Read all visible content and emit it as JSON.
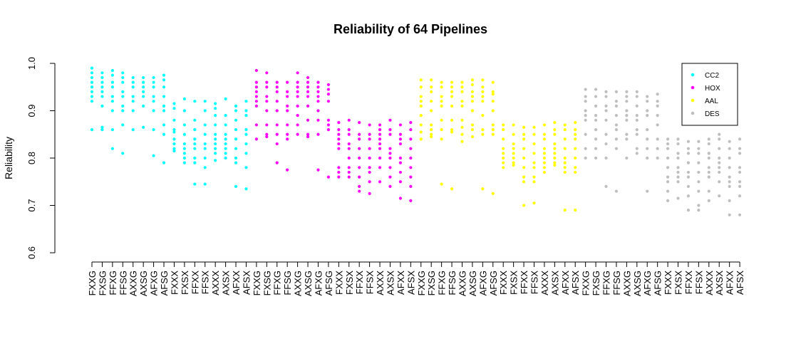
{
  "chart_data": {
    "type": "scatter",
    "title": "Reliability of 64 Pipelines",
    "ylabel": "Reliability",
    "xlabel": "",
    "ylim": [
      0.6,
      1.0
    ],
    "yticks": [
      "0.6",
      "0.7",
      "0.8",
      "0.9",
      "1.0"
    ],
    "grid": false,
    "legend_position": "top-right",
    "categories": [
      "FXXG",
      "FXSG",
      "FFXG",
      "FFSG",
      "AXXG",
      "AXSG",
      "AFXG",
      "AFSG",
      "FXXX",
      "FXSX",
      "FFXX",
      "FFSX",
      "AXXX",
      "AXSX",
      "AFXX",
      "AFSX",
      "FXXG",
      "FXSG",
      "FFXG",
      "FFSG",
      "AXXG",
      "AXSG",
      "AFXG",
      "AFSG",
      "FXXX",
      "FXSX",
      "FFXX",
      "FFSX",
      "AXXX",
      "AXSX",
      "AFXX",
      "AFSX",
      "FXXG",
      "FXSG",
      "FFXG",
      "FFSG",
      "AXXG",
      "AXSG",
      "AFXG",
      "AFSG",
      "FXXX",
      "FXSX",
      "FFXX",
      "FFSX",
      "AXXX",
      "AXSX",
      "AFXX",
      "AFSX",
      "FXXG",
      "FXSG",
      "FFXG",
      "FFSG",
      "AXXG",
      "AXSG",
      "AFXG",
      "AFSG",
      "FXXX",
      "FXSX",
      "FFXX",
      "FFSX",
      "AXXX",
      "AXSX",
      "AFXX",
      "AFSX"
    ],
    "series": [
      {
        "name": "CC2",
        "color": "#00FFFF",
        "points": [
          [
            0.99,
            0.98,
            0.97,
            0.96,
            0.95,
            0.94,
            0.93,
            0.92,
            0.86
          ],
          [
            0.98,
            0.97,
            0.96,
            0.95,
            0.94,
            0.93,
            0.91,
            0.86,
            0.865
          ],
          [
            0.985,
            0.975,
            0.96,
            0.95,
            0.93,
            0.92,
            0.9,
            0.86,
            0.82
          ],
          [
            0.98,
            0.97,
            0.96,
            0.94,
            0.93,
            0.91,
            0.9,
            0.87,
            0.81
          ],
          [
            0.97,
            0.96,
            0.95,
            0.93,
            0.92,
            0.9,
            0.86
          ],
          [
            0.97,
            0.96,
            0.95,
            0.94,
            0.93,
            0.91,
            0.865
          ],
          [
            0.97,
            0.96,
            0.95,
            0.93,
            0.92,
            0.9,
            0.86,
            0.805
          ],
          [
            0.975,
            0.965,
            0.95,
            0.93,
            0.91,
            0.9,
            0.87,
            0.85,
            0.79
          ],
          [
            0.915,
            0.905,
            0.88,
            0.86,
            0.855,
            0.84,
            0.83,
            0.82,
            0.815
          ],
          [
            0.925,
            0.9,
            0.87,
            0.85,
            0.83,
            0.82,
            0.81,
            0.8,
            0.79
          ],
          [
            0.92,
            0.88,
            0.86,
            0.84,
            0.83,
            0.82,
            0.8,
            0.79,
            0.745
          ],
          [
            0.92,
            0.9,
            0.87,
            0.85,
            0.83,
            0.82,
            0.8,
            0.78,
            0.745
          ],
          [
            0.915,
            0.905,
            0.89,
            0.87,
            0.85,
            0.84,
            0.83,
            0.82,
            0.81,
            0.795
          ],
          [
            0.925,
            0.89,
            0.87,
            0.85,
            0.84,
            0.83,
            0.82,
            0.81,
            0.8
          ],
          [
            0.91,
            0.9,
            0.88,
            0.86,
            0.84,
            0.82,
            0.8,
            0.79,
            0.74
          ],
          [
            0.92,
            0.9,
            0.89,
            0.86,
            0.85,
            0.83,
            0.81,
            0.78,
            0.735
          ]
        ]
      },
      {
        "name": "HOX",
        "color": "#FF00FF",
        "points": [
          [
            0.985,
            0.96,
            0.95,
            0.94,
            0.93,
            0.92,
            0.91,
            0.87,
            0.84
          ],
          [
            0.98,
            0.96,
            0.95,
            0.93,
            0.92,
            0.9,
            0.87,
            0.85,
            0.845
          ],
          [
            0.96,
            0.95,
            0.94,
            0.92,
            0.9,
            0.87,
            0.85,
            0.83,
            0.79
          ],
          [
            0.96,
            0.94,
            0.93,
            0.91,
            0.9,
            0.87,
            0.85,
            0.84,
            0.775
          ],
          [
            0.98,
            0.96,
            0.95,
            0.94,
            0.93,
            0.91,
            0.89,
            0.87,
            0.85
          ],
          [
            0.97,
            0.96,
            0.95,
            0.94,
            0.93,
            0.91,
            0.88,
            0.85,
            0.845
          ],
          [
            0.96,
            0.95,
            0.94,
            0.93,
            0.92,
            0.9,
            0.88,
            0.85,
            0.775
          ],
          [
            0.955,
            0.945,
            0.935,
            0.92,
            0.88,
            0.87,
            0.86,
            0.76
          ],
          [
            0.875,
            0.86,
            0.85,
            0.84,
            0.83,
            0.82,
            0.78,
            0.77,
            0.76
          ],
          [
            0.88,
            0.86,
            0.85,
            0.83,
            0.82,
            0.8,
            0.78,
            0.77,
            0.76
          ],
          [
            0.875,
            0.85,
            0.84,
            0.82,
            0.8,
            0.78,
            0.76,
            0.74,
            0.73
          ],
          [
            0.87,
            0.85,
            0.84,
            0.82,
            0.8,
            0.78,
            0.77,
            0.75,
            0.725
          ],
          [
            0.87,
            0.86,
            0.85,
            0.84,
            0.83,
            0.82,
            0.8,
            0.78,
            0.75
          ],
          [
            0.88,
            0.86,
            0.85,
            0.82,
            0.81,
            0.8,
            0.78,
            0.76,
            0.74
          ],
          [
            0.87,
            0.85,
            0.84,
            0.83,
            0.8,
            0.79,
            0.77,
            0.75,
            0.715
          ],
          [
            0.875,
            0.86,
            0.84,
            0.82,
            0.8,
            0.78,
            0.76,
            0.74,
            0.71
          ]
        ]
      },
      {
        "name": "AAL",
        "color": "#FFFF00",
        "points": [
          [
            0.965,
            0.95,
            0.93,
            0.92,
            0.91,
            0.89,
            0.87,
            0.855,
            0.84
          ],
          [
            0.965,
            0.95,
            0.94,
            0.92,
            0.9,
            0.87,
            0.86,
            0.85,
            0.845
          ],
          [
            0.96,
            0.95,
            0.93,
            0.92,
            0.91,
            0.88,
            0.86,
            0.84,
            0.745
          ],
          [
            0.96,
            0.95,
            0.94,
            0.93,
            0.91,
            0.88,
            0.86,
            0.855,
            0.735
          ],
          [
            0.96,
            0.95,
            0.94,
            0.92,
            0.91,
            0.88,
            0.865,
            0.85,
            0.835
          ],
          [
            0.965,
            0.955,
            0.94,
            0.93,
            0.92,
            0.9,
            0.87,
            0.86,
            0.845
          ],
          [
            0.965,
            0.95,
            0.94,
            0.93,
            0.92,
            0.89,
            0.86,
            0.85,
            0.735
          ],
          [
            0.96,
            0.94,
            0.935,
            0.92,
            0.9,
            0.87,
            0.86,
            0.85,
            0.725
          ],
          [
            0.87,
            0.86,
            0.84,
            0.82,
            0.81,
            0.8,
            0.79,
            0.78
          ],
          [
            0.87,
            0.85,
            0.83,
            0.82,
            0.81,
            0.8,
            0.79,
            0.785
          ],
          [
            0.865,
            0.85,
            0.84,
            0.82,
            0.8,
            0.78,
            0.76,
            0.75,
            0.7
          ],
          [
            0.865,
            0.85,
            0.83,
            0.81,
            0.79,
            0.78,
            0.76,
            0.75,
            0.705
          ],
          [
            0.87,
            0.85,
            0.84,
            0.82,
            0.81,
            0.8,
            0.79,
            0.78,
            0.77
          ],
          [
            0.875,
            0.86,
            0.85,
            0.83,
            0.82,
            0.81,
            0.8,
            0.79,
            0.785
          ],
          [
            0.87,
            0.86,
            0.84,
            0.82,
            0.8,
            0.79,
            0.78,
            0.77,
            0.69
          ],
          [
            0.875,
            0.86,
            0.85,
            0.84,
            0.82,
            0.8,
            0.78,
            0.77,
            0.69
          ]
        ]
      },
      {
        "name": "DES",
        "color": "#BEBEBE",
        "points": [
          [
            0.945,
            0.93,
            0.92,
            0.9,
            0.89,
            0.88,
            0.85,
            0.82,
            0.8
          ],
          [
            0.945,
            0.93,
            0.91,
            0.89,
            0.88,
            0.86,
            0.84,
            0.82,
            0.8
          ],
          [
            0.94,
            0.93,
            0.91,
            0.9,
            0.88,
            0.85,
            0.83,
            0.8,
            0.74
          ],
          [
            0.94,
            0.92,
            0.91,
            0.89,
            0.87,
            0.86,
            0.84,
            0.82,
            0.73
          ],
          [
            0.94,
            0.93,
            0.92,
            0.9,
            0.89,
            0.88,
            0.85,
            0.84,
            0.8
          ],
          [
            0.94,
            0.93,
            0.91,
            0.89,
            0.88,
            0.86,
            0.85,
            0.82,
            0.81
          ],
          [
            0.93,
            0.92,
            0.9,
            0.89,
            0.86,
            0.84,
            0.82,
            0.8,
            0.73
          ],
          [
            0.935,
            0.92,
            0.91,
            0.89,
            0.87,
            0.84,
            0.82,
            0.8
          ],
          [
            0.84,
            0.83,
            0.82,
            0.8,
            0.78,
            0.76,
            0.75,
            0.73,
            0.71
          ],
          [
            0.84,
            0.83,
            0.81,
            0.8,
            0.78,
            0.77,
            0.76,
            0.75,
            0.715
          ],
          [
            0.835,
            0.82,
            0.81,
            0.79,
            0.77,
            0.76,
            0.74,
            0.72,
            0.69
          ],
          [
            0.835,
            0.82,
            0.81,
            0.79,
            0.77,
            0.75,
            0.73,
            0.7,
            0.69
          ],
          [
            0.84,
            0.83,
            0.81,
            0.8,
            0.78,
            0.77,
            0.76,
            0.73,
            0.71
          ],
          [
            0.85,
            0.84,
            0.82,
            0.8,
            0.79,
            0.78,
            0.77,
            0.75,
            0.72
          ],
          [
            0.835,
            0.82,
            0.8,
            0.78,
            0.76,
            0.75,
            0.74,
            0.71,
            0.68
          ],
          [
            0.84,
            0.82,
            0.81,
            0.78,
            0.77,
            0.75,
            0.74,
            0.72,
            0.68
          ]
        ]
      }
    ]
  }
}
